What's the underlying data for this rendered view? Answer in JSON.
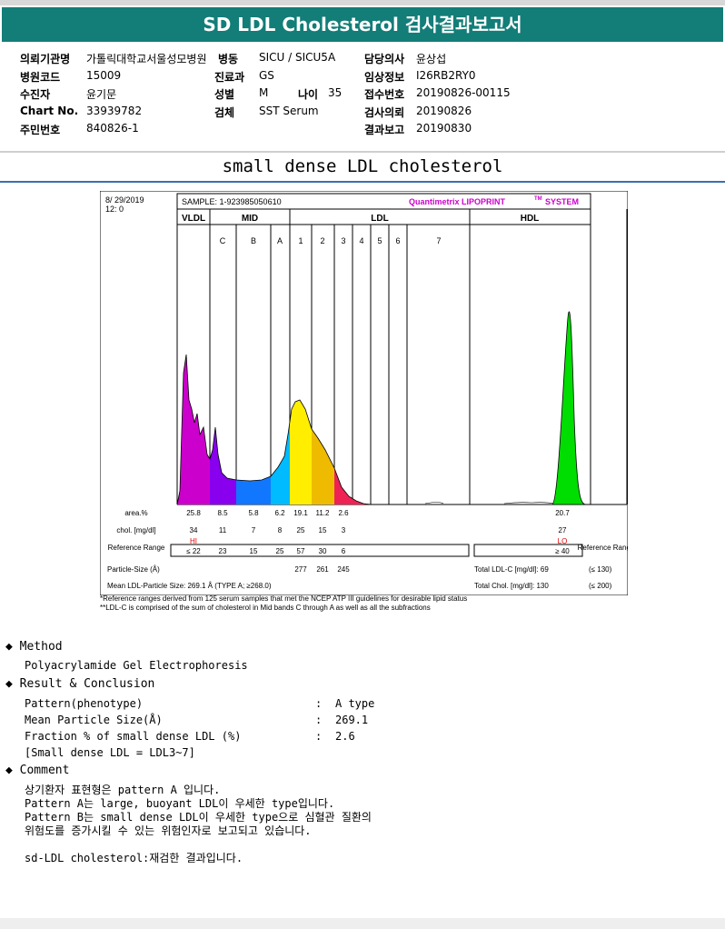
{
  "report": {
    "title": "SD LDL Cholesterol 검사결과보고서",
    "subtitle": "small dense LDL cholesterol"
  },
  "info": {
    "col1": [
      {
        "label": "의뢰기관명",
        "value": "가톨릭대학교서울성모병원"
      },
      {
        "label": "병원코드",
        "value": "15009"
      },
      {
        "label": "수진자",
        "value": "윤기문"
      },
      {
        "label": "Chart No.",
        "value": "33939782"
      },
      {
        "label": "주민번호",
        "value": "840826-1"
      }
    ],
    "col2": [
      {
        "label": "병동",
        "value": "SICU / SICU5A"
      },
      {
        "label": "진료과",
        "value": "GS"
      },
      {
        "label": "성별",
        "value": "M"
      },
      {
        "label": "검체",
        "value": "SST Serum"
      }
    ],
    "age": {
      "label": "나이",
      "value": "35"
    },
    "col3": [
      {
        "label": "담당의사",
        "value": "윤상섭"
      },
      {
        "label": "임상정보",
        "value": "I26RB2RY0"
      },
      {
        "label": "접수번호",
        "value": "20190826-00115"
      },
      {
        "label": "검사의뢰",
        "value": "20190826"
      },
      {
        "label": "결과보고",
        "value": "20190830"
      }
    ]
  },
  "lipoprint": {
    "date": "8/ 29/2019",
    "time": "12: 0",
    "sample": "SAMPLE:   1-923985050610",
    "brand": "Quantimetrix LIPOPRINT",
    "brand_tm": "TM",
    "brand_tail": "SYSTEM",
    "groups": [
      "VLDL",
      "MID",
      "LDL",
      "HDL"
    ],
    "bands": [
      "C",
      "B",
      "A",
      "1",
      "2",
      "3",
      "4",
      "5",
      "6",
      "7"
    ],
    "row_labels": {
      "area": "area.%",
      "chol": "chol. [mg/dl]",
      "ref": "Reference Range",
      "ref_right": "Reference Range",
      "psize": "Particle-Size (Å)",
      "mean": "Mean LDL-Particle Size:   269.1 Å   (TYPE A; ≥268.0)"
    },
    "area_values": [
      "25.8",
      "8.5",
      "5.8",
      "6.2",
      "19.1",
      "11.2",
      "2.6",
      "20.7"
    ],
    "chol_values": [
      "34",
      "11",
      "7",
      "8",
      "25",
      "15",
      "3",
      "27"
    ],
    "flags": {
      "hi": "HI",
      "lo": "LO"
    },
    "ref_values": [
      "≤ 22",
      "23",
      "15",
      "25",
      "57",
      "30",
      "6",
      "≥ 40"
    ],
    "particle_sizes": [
      "277",
      "261",
      "245"
    ],
    "total_ldl": "Total LDL-C [mg/dl]:  69",
    "total_ldl_ref": "(≤ 130)",
    "total_chol": "Total Chol. [mg/dl]:   130",
    "total_chol_ref": "(≤ 200)",
    "colors": {
      "vldl": "#cc00cc",
      "c": "#8800ee",
      "b": "#1177ff",
      "a": "#00bbff",
      "l1": "#ffee00",
      "l2": "#eebb00",
      "l3": "#ee2255",
      "hdl": "#00dd00"
    }
  },
  "notes": [
    "*Reference ranges derived from 125 serum samples that met the NCEP ATP III guidelines for desirable lipid status",
    "**LDL-C is comprised of the sum of cholesterol in Mid bands C through A as well as all the subfractions"
  ],
  "method": {
    "heading": "Method",
    "text": "Polyacrylamide Gel Electrophoresis"
  },
  "result": {
    "heading": "Result & Conclusion",
    "rows": [
      {
        "label": "Pattern(phenotype)",
        "value": "A type"
      },
      {
        "label": "Mean Particle Size(Å)",
        "value": "269.1"
      },
      {
        "label": "Fraction % of small dense LDL (%)",
        "value": "2.6"
      }
    ],
    "note": "[Small dense LDL = LDL3~7]"
  },
  "comment": {
    "heading": "Comment",
    "lines": [
      "상기환자 표현형은 pattern A 입니다.",
      "Pattern A는 large, buoyant LDL이 우세한 type입니다.",
      "Pattern B는 small dense LDL이 우세한 type으로 심혈관 질환의",
      "위험도를 증가시킬 수 있는 위험인자로 보고되고 있습니다.",
      "",
      "sd-LDL cholesterol:재검한 결과입니다."
    ]
  }
}
